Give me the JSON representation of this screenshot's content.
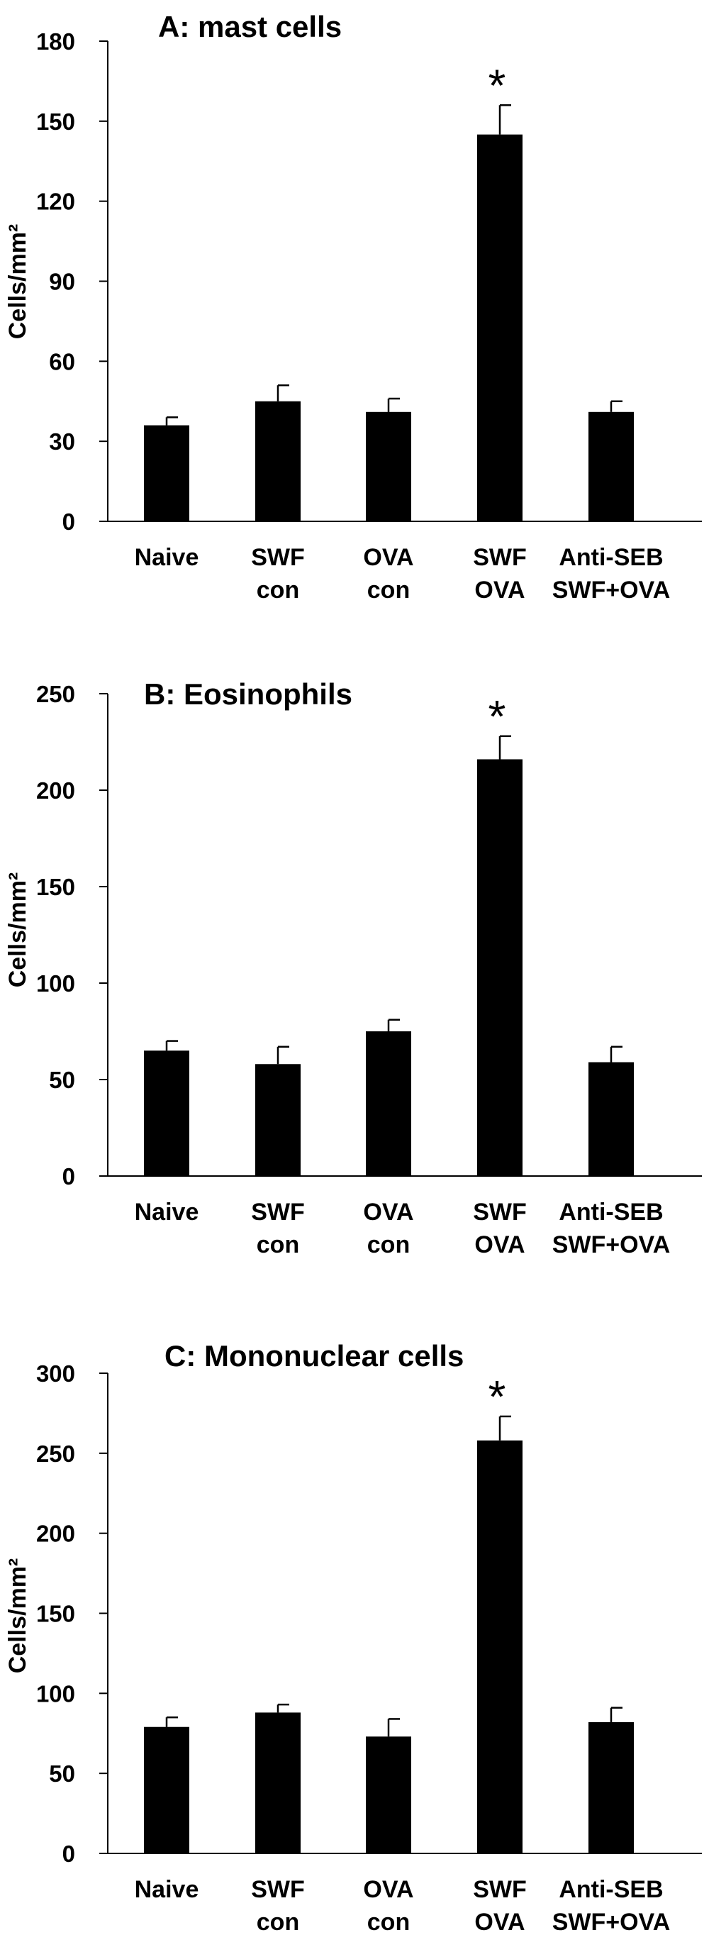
{
  "figure": {
    "colors": {
      "bar": "#000000",
      "axis": "#000000",
      "background": "#ffffff"
    }
  },
  "chart_data": [
    {
      "type": "bar",
      "title": "A: mast cells",
      "ylabel": "Cells/mm²",
      "xlabel": "",
      "categories": [
        [
          "Naive"
        ],
        [
          "SWF",
          "con"
        ],
        [
          "OVA",
          "con"
        ],
        [
          "SWF",
          "OVA"
        ],
        [
          "Anti-SEB",
          "SWF+OVA"
        ]
      ],
      "values": [
        36,
        45,
        41,
        145,
        41
      ],
      "errors": [
        3,
        6,
        5,
        11,
        4
      ],
      "significance": [
        "",
        "",
        "",
        "*",
        ""
      ],
      "ylim": [
        0,
        180
      ],
      "yticks": [
        0,
        30,
        60,
        90,
        120,
        150,
        180
      ],
      "grid": false
    },
    {
      "type": "bar",
      "title": "B: Eosinophils",
      "ylabel": "Cells/mm²",
      "xlabel": "",
      "categories": [
        [
          "Naive"
        ],
        [
          "SWF",
          "con"
        ],
        [
          "OVA",
          "con"
        ],
        [
          "SWF",
          "OVA"
        ],
        [
          "Anti-SEB",
          "SWF+OVA"
        ]
      ],
      "values": [
        65,
        58,
        75,
        216,
        59
      ],
      "errors": [
        5,
        9,
        6,
        12,
        8
      ],
      "significance": [
        "",
        "",
        "",
        "*",
        ""
      ],
      "ylim": [
        0,
        250
      ],
      "yticks": [
        0,
        50,
        100,
        150,
        200,
        250
      ],
      "grid": false
    },
    {
      "type": "bar",
      "title": "C: Mononuclear cells",
      "ylabel": "Cells/mm²",
      "xlabel": "",
      "categories": [
        [
          "Naive"
        ],
        [
          "SWF",
          "con"
        ],
        [
          "OVA",
          "con"
        ],
        [
          "SWF",
          "OVA"
        ],
        [
          "Anti-SEB",
          "SWF+OVA"
        ]
      ],
      "values": [
        79,
        88,
        73,
        258,
        82
      ],
      "errors": [
        6,
        5,
        11,
        15,
        9
      ],
      "significance": [
        "",
        "",
        "",
        "*",
        ""
      ],
      "ylim": [
        0,
        300
      ],
      "yticks": [
        0,
        50,
        100,
        150,
        200,
        250,
        300
      ],
      "grid": false
    }
  ]
}
